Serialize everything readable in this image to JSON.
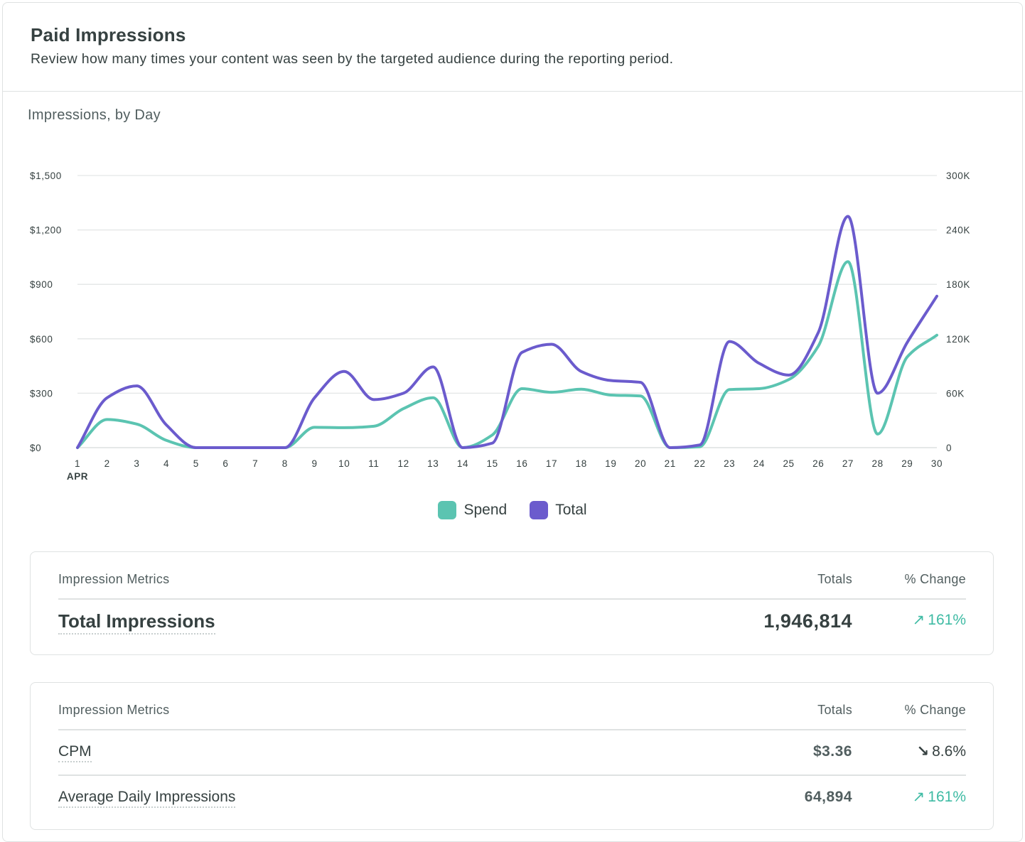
{
  "header": {
    "title": "Paid Impressions",
    "description": "Review how many times your content was seen by the targeted audience during the reporting period."
  },
  "chart_title": "Impressions, by Day",
  "colors": {
    "spend": "#5bc4b1",
    "total": "#6b5bcd",
    "up": "#3fbba4",
    "grid": "#e3e6e6"
  },
  "chart_data": {
    "type": "line",
    "x": [
      1,
      2,
      3,
      4,
      5,
      6,
      7,
      8,
      9,
      10,
      11,
      12,
      13,
      14,
      15,
      16,
      17,
      18,
      19,
      20,
      21,
      22,
      23,
      24,
      25,
      26,
      27,
      28,
      29,
      30
    ],
    "x_sub_label": "APR",
    "y_left_ticks": [
      "$0",
      "$300",
      "$600",
      "$900",
      "$1,200",
      "$1,500"
    ],
    "y_left_range": [
      0,
      1500
    ],
    "y_right_ticks": [
      "0",
      "60K",
      "120K",
      "180K",
      "240K",
      "300K"
    ],
    "y_right_range": [
      0,
      300000
    ],
    "grid": true,
    "legend_position": "bottom-center",
    "series": [
      {
        "name": "Spend",
        "axis": "left",
        "values": [
          0,
          155,
          130,
          40,
          0,
          0,
          0,
          0,
          112,
          110,
          118,
          215,
          275,
          0,
          70,
          325,
          305,
          322,
          290,
          285,
          0,
          5,
          320,
          325,
          375,
          560,
          1025,
          75,
          500,
          620
        ]
      },
      {
        "name": "Total",
        "axis": "right",
        "values": [
          0,
          55000,
          68000,
          25000,
          0,
          0,
          0,
          0,
          55000,
          84000,
          53000,
          60000,
          89000,
          0,
          5000,
          105000,
          114000,
          84000,
          74000,
          72000,
          0,
          3000,
          117000,
          93000,
          80000,
          127000,
          255000,
          60000,
          116000,
          167000
        ]
      }
    ]
  },
  "metrics1": {
    "col_name": "Impression Metrics",
    "col_totals": "Totals",
    "col_change": "% Change",
    "rows": [
      {
        "name": "Total Impressions",
        "total": "1,946,814",
        "change": "161%",
        "direction": "up",
        "arrow": "↗"
      }
    ]
  },
  "metrics2": {
    "col_name": "Impression Metrics",
    "col_totals": "Totals",
    "col_change": "% Change",
    "rows": [
      {
        "name": "CPM",
        "total": "$3.36",
        "change": "8.6%",
        "direction": "down",
        "arrow": "↘"
      },
      {
        "name": "Average Daily Impressions",
        "total": "64,894",
        "change": "161%",
        "direction": "up",
        "arrow": "↗"
      }
    ]
  }
}
